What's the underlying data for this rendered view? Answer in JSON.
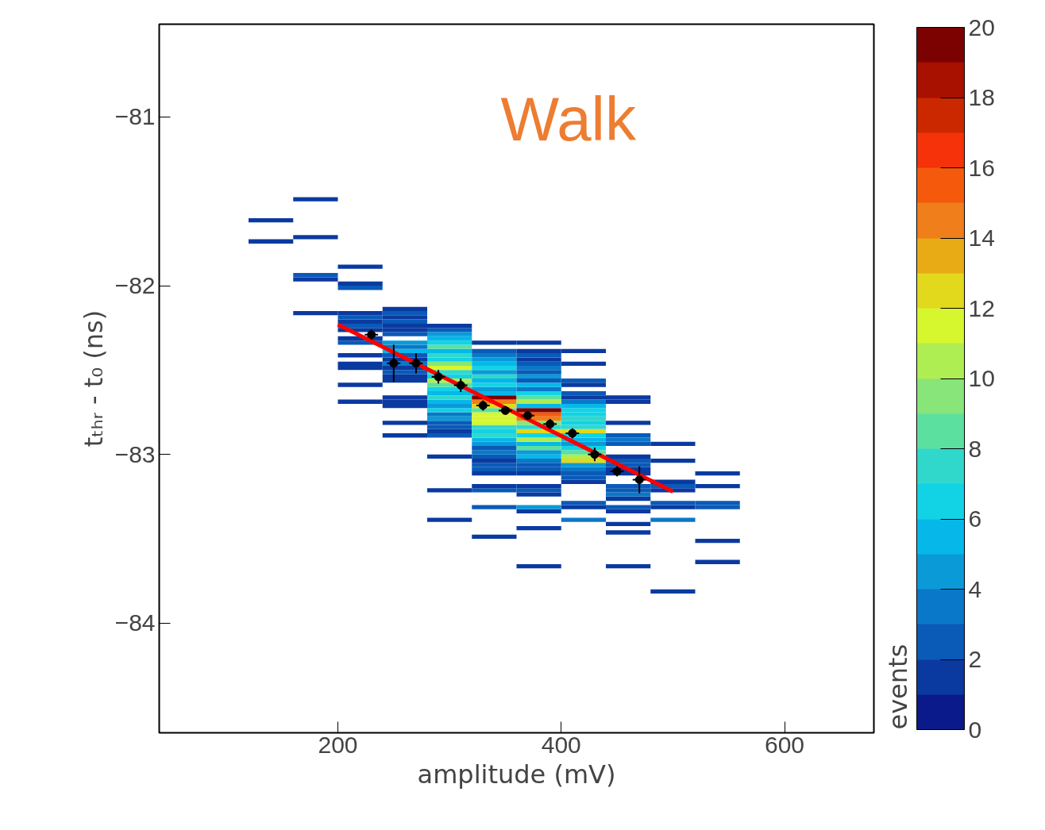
{
  "chart_data": {
    "type": "bar",
    "xlabel": "amplitude (mV)",
    "ylabel": "tₜₕᵣ - t₀ (ns)",
    "clabel": "events",
    "annotations": [
      "Walk"
    ],
    "xlim": [
      40,
      680
    ],
    "xticks": [
      200,
      400,
      600
    ],
    "ylim": [
      -84.65,
      -80.45
    ],
    "yticks": [
      {
        "value": -81,
        "label": "−81"
      },
      {
        "value": -82,
        "label": "−82"
      },
      {
        "value": -83,
        "label": "−83"
      },
      {
        "value": -84,
        "label": "−84"
      }
    ],
    "clim": [
      0,
      20
    ],
    "cticks": [
      0,
      2,
      4,
      6,
      8,
      10,
      12,
      14,
      16,
      18,
      20
    ],
    "grid": false,
    "series": [
      {
        "x": [
          140,
          180,
          220,
          260,
          300,
          340,
          380,
          420,
          460,
          500,
          540
        ],
        "base": [
          -81.75,
          -82.175,
          -82.7,
          -82.9,
          -83.4,
          -83.5,
          -83.675,
          -83.4,
          -83.675,
          -83.825,
          -83.65
        ],
        "values": [
          0.025,
          0.025,
          0.025,
          0.025,
          0.025,
          0.025,
          0.025,
          0.025,
          0.025,
          0.025,
          0.025
        ],
        "colors": [
          "#0a3aa0",
          "#0a3aa0",
          "#0a3aa0",
          "#0a3aa0",
          "#0a3aa0",
          "#0a3aa0",
          "#0a3aa0",
          "#0a78c8",
          "#0a3aa0",
          "#0a3aa0",
          "#0a3aa0"
        ]
      },
      {
        "x": [
          140,
          180,
          220,
          260,
          300,
          340,
          380,
          420,
          460,
          500,
          540
        ],
        "base": [
          -81.625,
          -81.975,
          -82.6,
          -82.825,
          -83.225,
          -83.325,
          -83.45,
          -83.325,
          -83.475,
          -83.4,
          -83.525
        ],
        "values": [
          0.025,
          0.025,
          0.025,
          0.025,
          0.025,
          0.025,
          0.025,
          0.025,
          0.025,
          0.025,
          0.025
        ],
        "colors": [
          "#0a3aa0",
          "#0a3aa0",
          "#0a3aa0",
          "#0a3aa0",
          "#0a3aa0",
          "#0a5ab8",
          "#0a3aa0",
          "#0a3aa0",
          "#0a3aa0",
          "#0a78c8",
          "#0a3aa0"
        ]
      },
      {
        "x": [
          180,
          220,
          260,
          300,
          340,
          380,
          420,
          460,
          500,
          540
        ],
        "base": [
          -81.95,
          -82.5,
          -82.725,
          -83.025,
          -83.225,
          -83.35,
          -83.3,
          -83.425,
          -83.325,
          -83.325
        ],
        "values": [
          0.025,
          0.025,
          0.025,
          0.025,
          0.025,
          0.025,
          0.025,
          0.025,
          0.025,
          0.025
        ],
        "colors": [
          "#0a5ab8",
          "#0a3aa0",
          "#0a3aa0",
          "#0a3aa0",
          "#0a5ab8",
          "#0a3aa0",
          "#0a5ab8",
          "#0a3aa0",
          "#0a3aa0",
          "#0a5ab8"
        ]
      },
      {
        "x": [
          180,
          220,
          260,
          300,
          340,
          380,
          420,
          460,
          500,
          540
        ],
        "base": [
          -81.725,
          -82.475,
          -82.7,
          -82.9,
          -83.2,
          -83.325,
          -83.175,
          -83.35,
          -83.3,
          -83.3
        ],
        "values": [
          0.025,
          0.025,
          0.025,
          0.025,
          0.025,
          0.025,
          0.025,
          0.025,
          0.025,
          0.025
        ],
        "colors": [
          "#0a3aa0",
          "#0a3aa0",
          "#0a3aa0",
          "#0a5ab8",
          "#0a3aa0",
          "#0a9ad8",
          "#0a3aa0",
          "#0a3aa0",
          "#0a5ab8",
          "#0a5ab8"
        ]
      },
      {
        "x": [
          180,
          220,
          260,
          300,
          340,
          380,
          420,
          460,
          500,
          540
        ],
        "base": [
          -81.5,
          -82.425,
          -82.675,
          -82.875,
          -83.125,
          -83.25,
          -83.15,
          -83.325,
          -83.225,
          -83.2
        ],
        "values": [
          0.025,
          0.025,
          0.025,
          0.025,
          0.025,
          0.025,
          0.025,
          0.025,
          0.025,
          0.025
        ],
        "colors": [
          "#0a3aa0",
          "#0a3aa0",
          "#0a3aa0",
          "#0a3aa0",
          "#0a3aa0",
          "#0a3aa0",
          "#0a5ab8",
          "#0a5ab8",
          "#0a3aa0",
          "#0a3aa0"
        ]
      },
      {
        "x": [
          220,
          260,
          300,
          340,
          380,
          420,
          460,
          500,
          540
        ],
        "base": [
          -82.35,
          -82.575,
          -82.85,
          -83.1,
          -83.225,
          -83.125,
          -83.275,
          -83.2,
          -83.125
        ],
        "values": [
          0.025,
          0.025,
          0.025,
          0.025,
          0.025,
          0.025,
          0.025,
          0.025,
          0.025
        ],
        "colors": [
          "#0a5ab8",
          "#0a3aa0",
          "#0a5ab8",
          "#0a5ab8",
          "#0a5ab8",
          "#0a5ab8",
          "#0a3aa0",
          "#0a5ab8",
          "#0a3aa0"
        ]
      },
      {
        "x": [
          220,
          260,
          300,
          340,
          380,
          420,
          460,
          500
        ],
        "base": [
          -82.325,
          -82.55,
          -82.825,
          -83.075,
          -83.2,
          -83.1,
          -83.25,
          -83.175
        ],
        "values": [
          0.025,
          0.025,
          0.025,
          0.025,
          0.025,
          0.025,
          0.025,
          0.025
        ],
        "colors": [
          "#0a3aa0",
          "#0a3aa0",
          "#0a5ab8",
          "#0a5ab8",
          "#0a3aa0",
          "#0a78c8",
          "#0a78c8",
          "#0a3aa0"
        ]
      },
      {
        "x": [
          220,
          260,
          300,
          340,
          380,
          420,
          460,
          500
        ],
        "base": [
          -82.275,
          -82.525,
          -82.8,
          -83.05,
          -83.125,
          -83.075,
          -83.225,
          -83.05
        ],
        "values": [
          0.025,
          0.025,
          0.025,
          0.025,
          0.025,
          0.025,
          0.025,
          0.025
        ],
        "colors": [
          "#0a3aa0",
          "#0a5ab8",
          "#0a9ad8",
          "#0a3aa0",
          "#0a3aa0",
          "#0a9ad8",
          "#0a5ab8",
          "#0a3aa0"
        ]
      },
      {
        "x": [
          220,
          260,
          300,
          340,
          380,
          420,
          460,
          500
        ],
        "base": [
          -82.25,
          -82.5,
          -82.775,
          -83.025,
          -83.1,
          -83.05,
          -83.2,
          -82.95
        ],
        "values": [
          0.025,
          0.025,
          0.025,
          0.025,
          0.025,
          0.025,
          0.025,
          0.025
        ],
        "colors": [
          "#0a5ab8",
          "#0a3aa0",
          "#0a78c8",
          "#0a5ab8",
          "#0a5ab8",
          "#e2d81c",
          "#0a5ab8",
          "#0a3aa0"
        ]
      },
      {
        "x": [
          220,
          260,
          300,
          340,
          380,
          420,
          460
        ],
        "base": [
          -82.225,
          -82.475,
          -82.75,
          -83.0,
          -83.075,
          -83.025,
          -83.125
        ],
        "values": [
          0.025,
          0.025,
          0.025,
          0.025,
          0.025,
          0.025,
          0.025
        ],
        "colors": [
          "#0a3aa0",
          "#0a78c8",
          "#12d3e6",
          "#0a78c8",
          "#0a5ab8",
          "#aeee52",
          "#0a3aa0"
        ]
      },
      {
        "x": [
          220,
          260,
          300,
          340,
          380,
          420,
          460
        ],
        "base": [
          -82.2,
          -82.45,
          -82.725,
          -82.975,
          -83.05,
          -83.0,
          -83.1
        ],
        "values": [
          0.025,
          0.025,
          0.025,
          0.025,
          0.025,
          0.025,
          0.025
        ],
        "colors": [
          "#0a5ab8",
          "#0a3aa0",
          "#0a9ad8",
          "#0a5ab8",
          "#0a78c8",
          "#5ce0a0",
          "#0a3aa0"
        ]
      },
      {
        "x": [
          220,
          260,
          300,
          340,
          380,
          420,
          460
        ],
        "base": [
          -82.175,
          -82.425,
          -82.7,
          -82.95,
          -83.025,
          -82.975,
          -83.075
        ],
        "values": [
          0.025,
          0.025,
          0.025,
          0.025,
          0.025,
          0.025,
          0.025
        ],
        "colors": [
          "#0a3aa0",
          "#0a5ab8",
          "#06b8ea",
          "#0a9ad8",
          "#06b8ea",
          "#12d3e6",
          "#0a5ab8"
        ]
      },
      {
        "x": [
          220,
          260,
          300,
          340,
          380,
          420,
          460
        ],
        "base": [
          -82.025,
          -82.4,
          -82.675,
          -82.925,
          -83.0,
          -82.95,
          -83.05
        ],
        "values": [
          0.025,
          0.025,
          0.025,
          0.025,
          0.025,
          0.025,
          0.025
        ],
        "colors": [
          "#0a5ab8",
          "#06b8ea",
          "#30d8cc",
          "#06b8ea",
          "#0a9ad8",
          "#0a9ad8",
          "#0a5ab8"
        ]
      },
      {
        "x": [
          220,
          260,
          300,
          340,
          380,
          420,
          460
        ],
        "base": [
          -82.0,
          -82.375,
          -82.65,
          -82.9,
          -82.975,
          -82.925,
          -83.025
        ],
        "values": [
          0.025,
          0.025,
          0.025,
          0.025,
          0.025,
          0.025,
          0.025
        ],
        "colors": [
          "#0a3aa0",
          "#0a78c8",
          "#06b8ea",
          "#30d8cc",
          "#5ce0a0",
          "#06b8ea",
          "#0a3aa0"
        ]
      },
      {
        "x": [
          220,
          260,
          300,
          340,
          380,
          420,
          460
        ],
        "base": [
          -81.9,
          -82.35,
          -82.625,
          -82.875,
          -82.95,
          -82.9,
          -82.95
        ],
        "values": [
          0.025,
          0.025,
          0.025,
          0.025,
          0.025,
          0.025,
          0.025
        ],
        "colors": [
          "#0a3aa0",
          "#0a9ad8",
          "#12d3e6",
          "#12d3e6",
          "#06b8ea",
          "#12d3e6",
          "#0a5ab8"
        ]
      },
      {
        "x": [
          260,
          300,
          340,
          380,
          420,
          460
        ],
        "base": [
          -82.3,
          -82.6,
          -82.85,
          -82.925,
          -82.875,
          -82.925
        ],
        "values": [
          0.025,
          0.025,
          0.025,
          0.025,
          0.025,
          0.025
        ],
        "colors": [
          "#0a5ab8",
          "#5ce0a0",
          "#30d8cc",
          "#aeee52",
          "#e2d81c",
          "#0a78c8"
        ]
      },
      {
        "x": [
          260,
          300,
          340,
          380,
          420,
          460
        ],
        "base": [
          -82.275,
          -82.575,
          -82.825,
          -82.9,
          -82.85,
          -82.9
        ],
        "values": [
          0.025,
          0.025,
          0.025,
          0.025,
          0.025,
          0.025
        ],
        "colors": [
          "#0a3aa0",
          "#aeee52",
          "#d6f72e",
          "#12d3e6",
          "#30d8cc",
          "#0a5ab8"
        ]
      },
      {
        "x": [
          260,
          300,
          340,
          380,
          420,
          460
        ],
        "base": [
          -82.25,
          -82.55,
          -82.8,
          -82.875,
          -82.825,
          -82.825
        ],
        "values": [
          0.025,
          0.025,
          0.025,
          0.025,
          0.025,
          0.025
        ],
        "colors": [
          "#0a3aa0",
          "#12d3e6",
          "#d6f72e",
          "#e2d81c",
          "#12d3e6",
          "#0a3aa0"
        ]
      },
      {
        "x": [
          260,
          300,
          340,
          380,
          420,
          460
        ],
        "base": [
          -82.225,
          -82.525,
          -82.775,
          -82.85,
          -82.8,
          -82.7
        ],
        "values": [
          0.025,
          0.025,
          0.025,
          0.025,
          0.025,
          0.025
        ],
        "colors": [
          "#0a5ab8",
          "#30d8cc",
          "#d6f72e",
          "#30d8cc",
          "#30d8cc",
          "#0a3aa0"
        ]
      },
      {
        "x": [
          260,
          300,
          340,
          380,
          420,
          460
        ],
        "base": [
          -82.2,
          -82.5,
          -82.75,
          -82.825,
          -82.775,
          -82.675
        ],
        "values": [
          0.025,
          0.025,
          0.025,
          0.025,
          0.025,
          0.025
        ],
        "colors": [
          "#0a3aa0",
          "#d6f72e",
          "#5ce0a0",
          "#88e57a",
          "#12d3e6",
          "#0a3aa0"
        ]
      },
      {
        "x": [
          260,
          300,
          340,
          380,
          420
        ],
        "base": [
          -82.175,
          -82.475,
          -82.725,
          -82.8,
          -82.75
        ],
        "values": [
          0.025,
          0.025,
          0.025,
          0.025,
          0.025
        ],
        "colors": [
          "#0a5ab8",
          "#88e57a",
          "#e2d81c",
          "#f07e1a",
          "#12d3e6"
        ]
      },
      {
        "x": [
          260,
          300,
          340,
          380,
          420
        ],
        "base": [
          -82.15,
          -82.45,
          -82.7,
          -82.775,
          -82.725
        ],
        "values": [
          0.025,
          0.025,
          0.025,
          0.025,
          0.025
        ],
        "colors": [
          "#0a3aa0",
          "#12d3e6",
          "#f07e1a",
          "#f55a0c",
          "#06b8ea"
        ]
      },
      {
        "x": [
          300,
          340,
          380,
          420
        ],
        "base": [
          -82.425,
          -82.675,
          -82.75,
          -82.7
        ],
        "values": [
          0.025,
          0.025,
          0.025,
          0.025
        ],
        "colors": [
          "#30d8cc",
          "#7c0202",
          "#7c0202",
          "#0a78c8"
        ]
      },
      {
        "x": [
          300,
          340,
          380,
          420
        ],
        "base": [
          -82.4,
          -82.65,
          -82.725,
          -82.675
        ],
        "values": [
          0.025,
          0.025,
          0.025,
          0.025
        ],
        "colors": [
          "#06b8ea",
          "#06b8ea",
          "#06b8ea",
          "#0a3aa0"
        ]
      },
      {
        "x": [
          300,
          340,
          380,
          420
        ],
        "base": [
          -82.375,
          -82.625,
          -82.7,
          -82.65
        ],
        "values": [
          0.025,
          0.025,
          0.025,
          0.025
        ],
        "colors": [
          "#5ce0a0",
          "#0a9ad8",
          "#aeee52",
          "#0a5ab8"
        ]
      },
      {
        "x": [
          300,
          340,
          380,
          420
        ],
        "base": [
          -82.35,
          -82.6,
          -82.675,
          -82.6
        ],
        "values": [
          0.025,
          0.025,
          0.025,
          0.025
        ],
        "colors": [
          "#12d3e6",
          "#12d3e6",
          "#5ce0a0",
          "#0a3aa0"
        ]
      },
      {
        "x": [
          300,
          340,
          380,
          420
        ],
        "base": [
          -82.325,
          -82.575,
          -82.65,
          -82.575
        ],
        "values": [
          0.025,
          0.025,
          0.025,
          0.025
        ],
        "colors": [
          "#06b8ea",
          "#06b8ea",
          "#12d3e6",
          "#0a5ab8"
        ]
      },
      {
        "x": [
          300,
          340,
          380,
          420
        ],
        "base": [
          -82.3,
          -82.55,
          -82.625,
          -82.475
        ],
        "values": [
          0.025,
          0.025,
          0.025,
          0.025
        ],
        "colors": [
          "#0a9ad8",
          "#30d8cc",
          "#0a78c8",
          "#0a3aa0"
        ]
      },
      {
        "x": [
          300,
          340,
          380,
          420
        ],
        "base": [
          -82.275,
          -82.525,
          -82.6,
          -82.4
        ],
        "values": [
          0.025,
          0.025,
          0.025,
          0.025
        ],
        "colors": [
          "#0a5ab8",
          "#0a9ad8",
          "#06b8ea",
          "#0a3aa0"
        ]
      },
      {
        "x": [
          300,
          340,
          380
        ],
        "base": [
          -82.25,
          -82.5,
          -82.575
        ],
        "values": [
          0.025,
          0.025,
          0.025
        ],
        "colors": [
          "#0a3aa0",
          "#12d3e6",
          "#0a5ab8"
        ]
      },
      {
        "x": [
          340,
          380
        ],
        "base": [
          -82.475,
          -82.55
        ],
        "values": [
          0.025,
          0.025
        ],
        "colors": [
          "#06b8ea",
          "#0a9ad8"
        ]
      },
      {
        "x": [
          340,
          380
        ],
        "base": [
          -82.45,
          -82.525
        ],
        "values": [
          0.025,
          0.025
        ],
        "colors": [
          "#0a9ad8",
          "#0a5ab8"
        ]
      },
      {
        "x": [
          340,
          380
        ],
        "base": [
          -82.425,
          -82.5
        ],
        "values": [
          0.025,
          0.025
        ],
        "colors": [
          "#0a78c8",
          "#0a78c8"
        ]
      },
      {
        "x": [
          340,
          380
        ],
        "base": [
          -82.4,
          -82.475
        ],
        "values": [
          0.025,
          0.025
        ],
        "colors": [
          "#0a5ab8",
          "#0a5ab8"
        ]
      },
      {
        "x": [
          340,
          380
        ],
        "base": [
          -82.35,
          -82.45
        ],
        "values": [
          0.025,
          0.025
        ],
        "colors": [
          "#0a3aa0",
          "#0a3aa0"
        ]
      },
      {
        "x": [
          380
        ],
        "base": [
          -82.425
        ],
        "values": [
          0.025
        ],
        "colors": [
          "#0a5ab8"
        ]
      },
      {
        "x": [
          380
        ],
        "base": [
          -82.4
        ],
        "values": [
          0.025
        ],
        "colors": [
          "#0a3aa0"
        ]
      },
      {
        "x": [
          380
        ],
        "base": [
          -82.35
        ],
        "values": [
          0.025
        ],
        "colors": [
          "#0a3aa0"
        ]
      },
      {
        "type": "line",
        "color": "#ff0000",
        "x": [
          200,
          500
        ],
        "values": [
          -82.23,
          -83.22
        ]
      },
      {
        "type": "scatter",
        "color": "#000000",
        "marker": "circle",
        "x": [
          230,
          250,
          270,
          290,
          310,
          330,
          350,
          370,
          390,
          410,
          430,
          450,
          470
        ],
        "values": [
          -82.29,
          -82.46,
          -82.46,
          -82.54,
          -82.59,
          -82.71,
          -82.74,
          -82.77,
          -82.82,
          -82.875,
          -83.0,
          -83.1,
          -83.15
        ],
        "errors": [
          0.03,
          0.11,
          0.06,
          0.04,
          0.04,
          0.03,
          0.02,
          0.02,
          0.03,
          0.03,
          0.04,
          0.03,
          0.08
        ],
        "xerrors": [
          6,
          6,
          6,
          6,
          6,
          6,
          6,
          6,
          6,
          6,
          6,
          6,
          6
        ]
      }
    ]
  }
}
